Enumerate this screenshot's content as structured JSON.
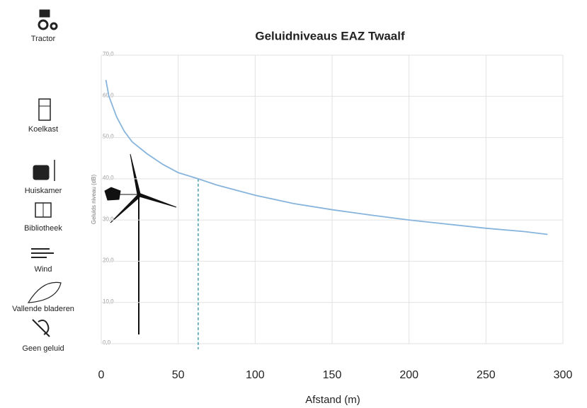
{
  "chart_data": {
    "type": "line",
    "title": "Geluidniveaus EAZ Twaalf",
    "y_label": "Geluids niveau (dB)",
    "x_label": "Afstand (m)",
    "x": [
      3,
      5,
      10,
      15,
      20,
      25,
      30,
      40,
      50,
      63,
      75,
      100,
      125,
      150,
      175,
      200,
      225,
      250,
      275,
      290
    ],
    "series": [
      {
        "color": "#86b4dc",
        "values": [
          64,
          60,
          55,
          51.5,
          49,
          47.5,
          46,
          43.5,
          41.5,
          40,
          38.5,
          36,
          34,
          32.5,
          31.2,
          30,
          29,
          28,
          27.2,
          26.5
        ]
      }
    ],
    "marker_x": 63,
    "marker_color": "#2a8fa0",
    "xlim": [
      0,
      300
    ],
    "xticks": [
      0,
      50,
      100,
      150,
      200,
      250,
      300
    ],
    "ylim": [
      0,
      70
    ],
    "yticks": [
      {
        "value": 0,
        "label": "0,0"
      },
      {
        "value": 10,
        "label": "10,0"
      },
      {
        "value": 20,
        "label": "20,0"
      },
      {
        "value": 30,
        "label": "30,0"
      },
      {
        "value": 40,
        "label": "40,0"
      },
      {
        "value": 50,
        "label": "50,0"
      },
      {
        "value": 60,
        "label": "60,0"
      },
      {
        "value": 70,
        "label": "70,0"
      }
    ],
    "grid": true,
    "side_labels": [
      "Tractor",
      "Koelkast",
      "Huiskamer",
      "Bibliotheek",
      "Wind",
      "Vallende bladeren",
      "Geen geluid"
    ]
  }
}
